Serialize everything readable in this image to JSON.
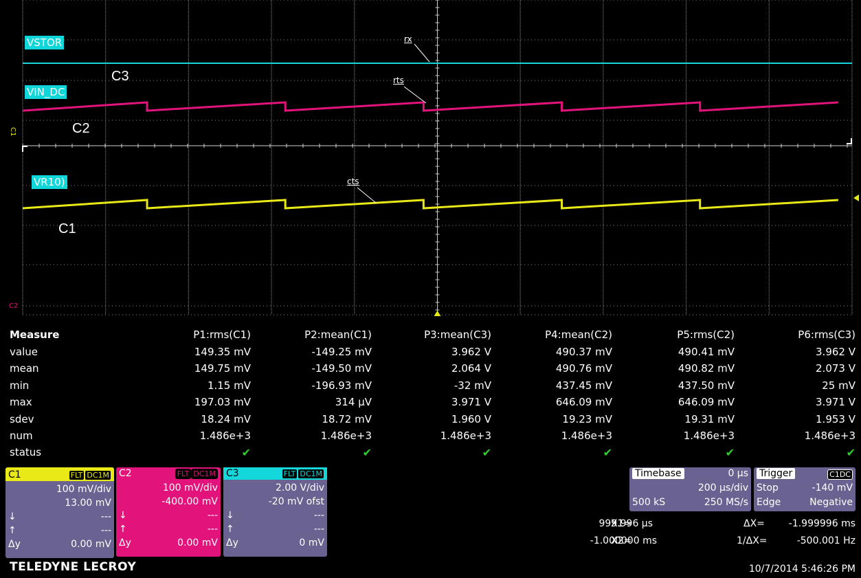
{
  "scope": {
    "traces": [
      {
        "tag": "VSTOR",
        "label": "C3",
        "color": "#13d7db"
      },
      {
        "tag": "VIN_DC",
        "label": "C2",
        "color": "#e2137a"
      },
      {
        "tag": "VR10)",
        "label": "C1",
        "color": "#e9e918"
      }
    ],
    "cursors": {
      "rx": "rx",
      "rts": "rts",
      "cts": "cts"
    },
    "left_markers": {
      "c1": "C1",
      "c2": "C2"
    }
  },
  "measure": {
    "title": "Measure",
    "columns": [
      "P1:rms(C1)",
      "P2:mean(C1)",
      "P3:mean(C3)",
      "P4:mean(C2)",
      "P5:rms(C2)",
      "P6:rms(C3)"
    ],
    "rows": [
      {
        "label": "value",
        "cells": [
          "149.35 mV",
          "-149.25 mV",
          "3.962 V",
          "490.37 mV",
          "490.41 mV",
          "3.962 V"
        ]
      },
      {
        "label": "mean",
        "cells": [
          "149.75 mV",
          "-149.50 mV",
          "2.064 V",
          "490.76 mV",
          "490.82 mV",
          "2.073 V"
        ]
      },
      {
        "label": "min",
        "cells": [
          "1.15 mV",
          "-196.93 mV",
          "-32 mV",
          "437.45 mV",
          "437.50 mV",
          "25 mV"
        ]
      },
      {
        "label": "max",
        "cells": [
          "197.03 mV",
          "314 µV",
          "3.971 V",
          "646.09 mV",
          "646.09 mV",
          "3.971 V"
        ]
      },
      {
        "label": "sdev",
        "cells": [
          "18.24 mV",
          "18.72 mV",
          "1.960 V",
          "19.23 mV",
          "19.31 mV",
          "1.953 V"
        ]
      },
      {
        "label": "num",
        "cells": [
          "1.486e+3",
          "1.486e+3",
          "1.486e+3",
          "1.486e+3",
          "1.486e+3",
          "1.486e+3"
        ]
      }
    ],
    "status_label": "status",
    "status_mark": "✔"
  },
  "channels": [
    {
      "name": "C1",
      "badge1": "FLT",
      "badge2": "DC1M",
      "scale": "100 mV/div",
      "offset": "13.00 mV",
      "down": "---",
      "up": "---",
      "dy_label": "Δy",
      "dy": "0.00 mV",
      "color": "#e9e918"
    },
    {
      "name": "C2",
      "badge1": "FLT",
      "badge2": "DC1M",
      "scale": "100 mV/div",
      "offset": "-400.00 mV",
      "down": "---",
      "up": "---",
      "dy_label": "Δy",
      "dy": "0.00 mV",
      "color": "#e2137a"
    },
    {
      "name": "C3",
      "badge1": "FLT",
      "badge2": "DC1M",
      "scale": "2.00 V/div",
      "offset": "-20 mV ofst",
      "down": "---",
      "up": "---",
      "dy_label": "Δy",
      "dy": "0 mV",
      "color": "#13d7db"
    }
  ],
  "timebase": {
    "title": "Timebase",
    "delay": "0 µs",
    "per_div": "200 µs/div",
    "samples": "500 kS",
    "rate": "250 MS/s"
  },
  "trigger": {
    "title": "Trigger",
    "badge": "C1DC",
    "mode": "Stop",
    "level": "-140 mV",
    "type": "Edge",
    "slope": "Negative"
  },
  "cursor_readout": {
    "x1_label": "X1=",
    "x1": "999.996 µs",
    "dx_label": "ΔX=",
    "dx": "-1.999996 ms",
    "x2_label": "X2=",
    "x2": "-1.000000 ms",
    "inv_dx_label": "1/ΔX=",
    "inv_dx": "-500.001 Hz"
  },
  "brand": "TELEDYNE LECROY",
  "timestamp": "10/7/2014 5:46:26 PM"
}
